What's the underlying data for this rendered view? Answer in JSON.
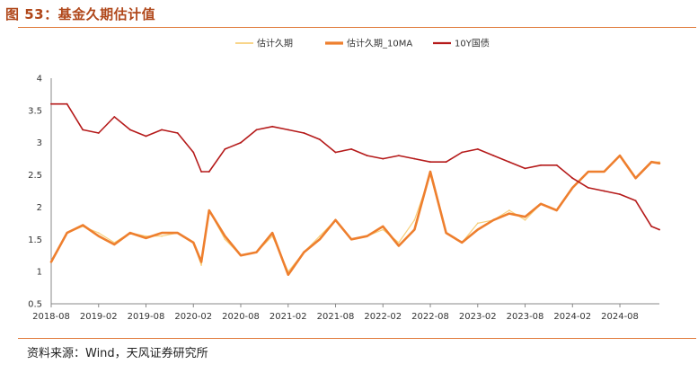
{
  "figure": {
    "title": "图 53：基金久期估计值",
    "source": "资料来源：Wind，天风证券研究所"
  },
  "colors": {
    "est": "#f7cf7a",
    "ma": "#ee7f2e",
    "bond": "#b51a1a",
    "accent_rule": "#e07a3a",
    "title": "#b0471a"
  },
  "chart_data": {
    "type": "line",
    "title": "",
    "xlabel": "",
    "ylabel": "",
    "ylim": [
      0.5,
      4
    ],
    "yticks": [
      "0.5",
      "1",
      "1.5",
      "2",
      "2.5",
      "3",
      "3.5",
      "4"
    ],
    "xticks": [
      "2018-08",
      "2019-02",
      "2019-08",
      "2020-02",
      "2020-08",
      "2021-02",
      "2021-08",
      "2022-02",
      "2022-08",
      "2023-02",
      "2023-08",
      "2024-02",
      "2024-08"
    ],
    "x": [
      "2018-08",
      "2018-10",
      "2018-12",
      "2019-02",
      "2019-04",
      "2019-06",
      "2019-08",
      "2019-10",
      "2019-12",
      "2020-02",
      "2020-03",
      "2020-04",
      "2020-06",
      "2020-08",
      "2020-10",
      "2020-12",
      "2021-02",
      "2021-04",
      "2021-06",
      "2021-08",
      "2021-10",
      "2021-12",
      "2022-02",
      "2022-04",
      "2022-06",
      "2022-08",
      "2022-10",
      "2022-12",
      "2023-02",
      "2023-04",
      "2023-06",
      "2023-08",
      "2023-10",
      "2023-12",
      "2024-02",
      "2024-04",
      "2024-06",
      "2024-08",
      "2024-10",
      "2024-12",
      "2025-01"
    ],
    "legend": {
      "position": "top",
      "entries": [
        "估计久期",
        "估计久期_10MA",
        "10Y国债"
      ]
    },
    "series": [
      {
        "name": "估计久期",
        "values": [
          1.15,
          1.6,
          1.7,
          1.6,
          1.45,
          1.6,
          1.55,
          1.55,
          1.6,
          1.45,
          1.1,
          1.95,
          1.5,
          1.25,
          1.3,
          1.55,
          1.0,
          1.3,
          1.55,
          1.8,
          1.5,
          1.55,
          1.65,
          1.45,
          1.8,
          2.5,
          1.6,
          1.45,
          1.75,
          1.8,
          1.95,
          1.8,
          2.05,
          1.95,
          2.3,
          2.55,
          2.55,
          2.8,
          2.45,
          2.7,
          2.7
        ]
      },
      {
        "name": "估计久期_10MA",
        "values": [
          1.15,
          1.6,
          1.72,
          1.55,
          1.42,
          1.6,
          1.52,
          1.6,
          1.6,
          1.45,
          1.15,
          1.95,
          1.55,
          1.25,
          1.3,
          1.6,
          0.95,
          1.3,
          1.5,
          1.8,
          1.5,
          1.55,
          1.7,
          1.4,
          1.65,
          2.55,
          1.6,
          1.45,
          1.65,
          1.8,
          1.9,
          1.85,
          2.05,
          1.95,
          2.3,
          2.55,
          2.55,
          2.8,
          2.45,
          2.7,
          2.68
        ]
      },
      {
        "name": "10Y国债",
        "values": [
          3.6,
          3.6,
          3.2,
          3.15,
          3.4,
          3.2,
          3.1,
          3.2,
          3.15,
          2.85,
          2.55,
          2.55,
          2.9,
          3.0,
          3.2,
          3.25,
          3.2,
          3.15,
          3.05,
          2.85,
          2.9,
          2.8,
          2.75,
          2.8,
          2.75,
          2.7,
          2.7,
          2.85,
          2.9,
          2.8,
          2.7,
          2.6,
          2.65,
          2.65,
          2.45,
          2.3,
          2.25,
          2.2,
          2.1,
          1.7,
          1.65
        ]
      }
    ]
  }
}
